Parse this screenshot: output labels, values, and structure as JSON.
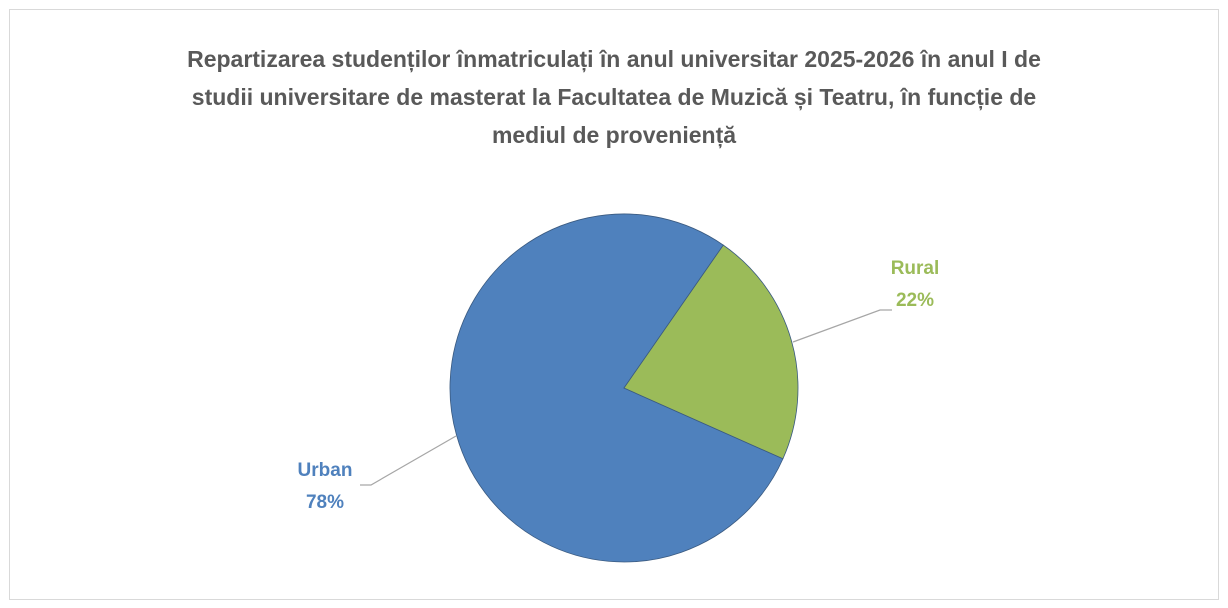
{
  "chart_data": {
    "type": "pie",
    "title": "Repartizarea studenților înmatriculați în anul universitar 2025-2026 în anul I de studii universitare de masterat la Facultatea de Muzică și Teatru, în funcție de mediul de proveniență",
    "categories": [
      "Urban",
      "Rural"
    ],
    "values": [
      78,
      22
    ],
    "value_labels": [
      "78%",
      "22%"
    ],
    "colors": [
      "#4f81bd",
      "#9bbb59"
    ]
  }
}
